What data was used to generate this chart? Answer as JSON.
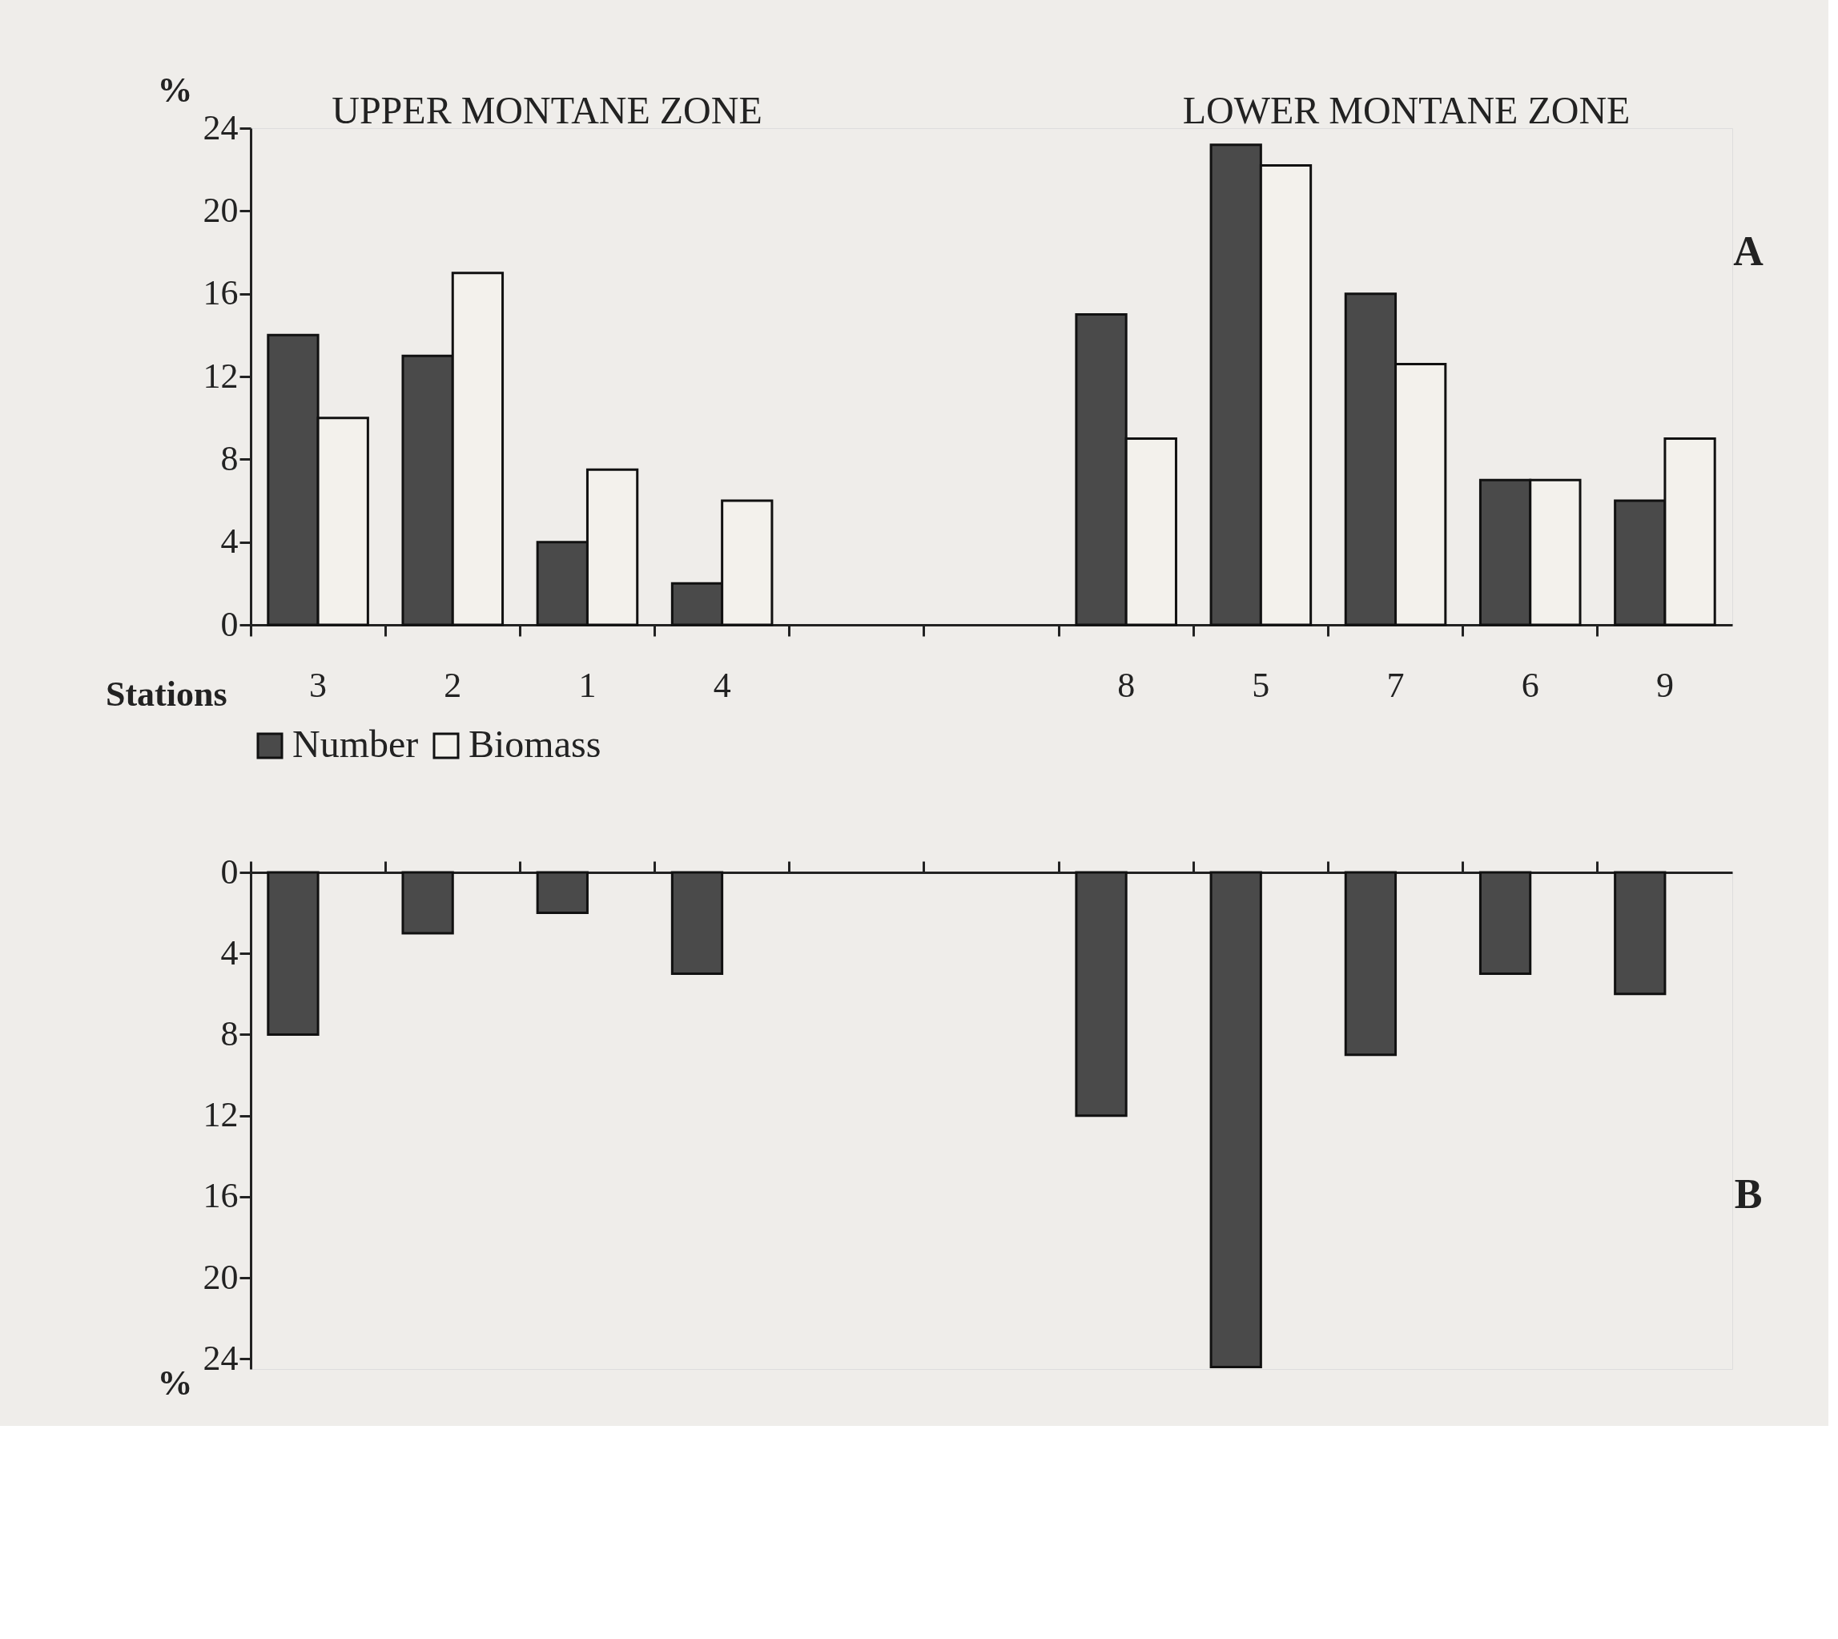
{
  "chart_data": [
    {
      "type": "bar",
      "xlabel": "Stations",
      "ylabel": "%",
      "categories": [
        "3",
        "2",
        "1",
        "4",
        null,
        null,
        "8",
        "5",
        "7",
        "6",
        "9"
      ],
      "series": [
        {
          "name": "Number",
          "color": "#4a4a4a",
          "values": [
            14,
            13,
            4,
            2,
            null,
            null,
            15,
            23.2,
            16,
            7,
            6
          ]
        },
        {
          "name": "Biomass",
          "color": "#f3f1ec",
          "values": [
            10,
            17,
            7.5,
            6,
            null,
            null,
            9,
            22.2,
            12.6,
            7,
            9
          ]
        }
      ],
      "ylim": [
        0,
        24
      ],
      "yticks": [
        0,
        4,
        8,
        12,
        16,
        20,
        24
      ],
      "grid": false,
      "legend": "bottom",
      "annotations": [
        "UPPER MONTANE ZONE",
        "LOWER MONTANE ZONE",
        "A"
      ]
    },
    {
      "type": "bar",
      "ylabel": "%",
      "categories": [
        "3",
        "2",
        "1",
        "4",
        null,
        null,
        "8",
        "5",
        "7",
        "6",
        "9"
      ],
      "series": [
        {
          "name": "Number",
          "color": "#4a4a4a",
          "values": [
            8,
            3,
            2,
            5,
            null,
            null,
            12,
            24.4,
            9,
            5,
            6
          ]
        }
      ],
      "ylim": [
        24.5,
        0
      ],
      "yticks": [
        0,
        4,
        8,
        12,
        16,
        20,
        24
      ],
      "grid": false,
      "tick_labels": "y",
      "annotations": [
        "B"
      ]
    }
  ]
}
